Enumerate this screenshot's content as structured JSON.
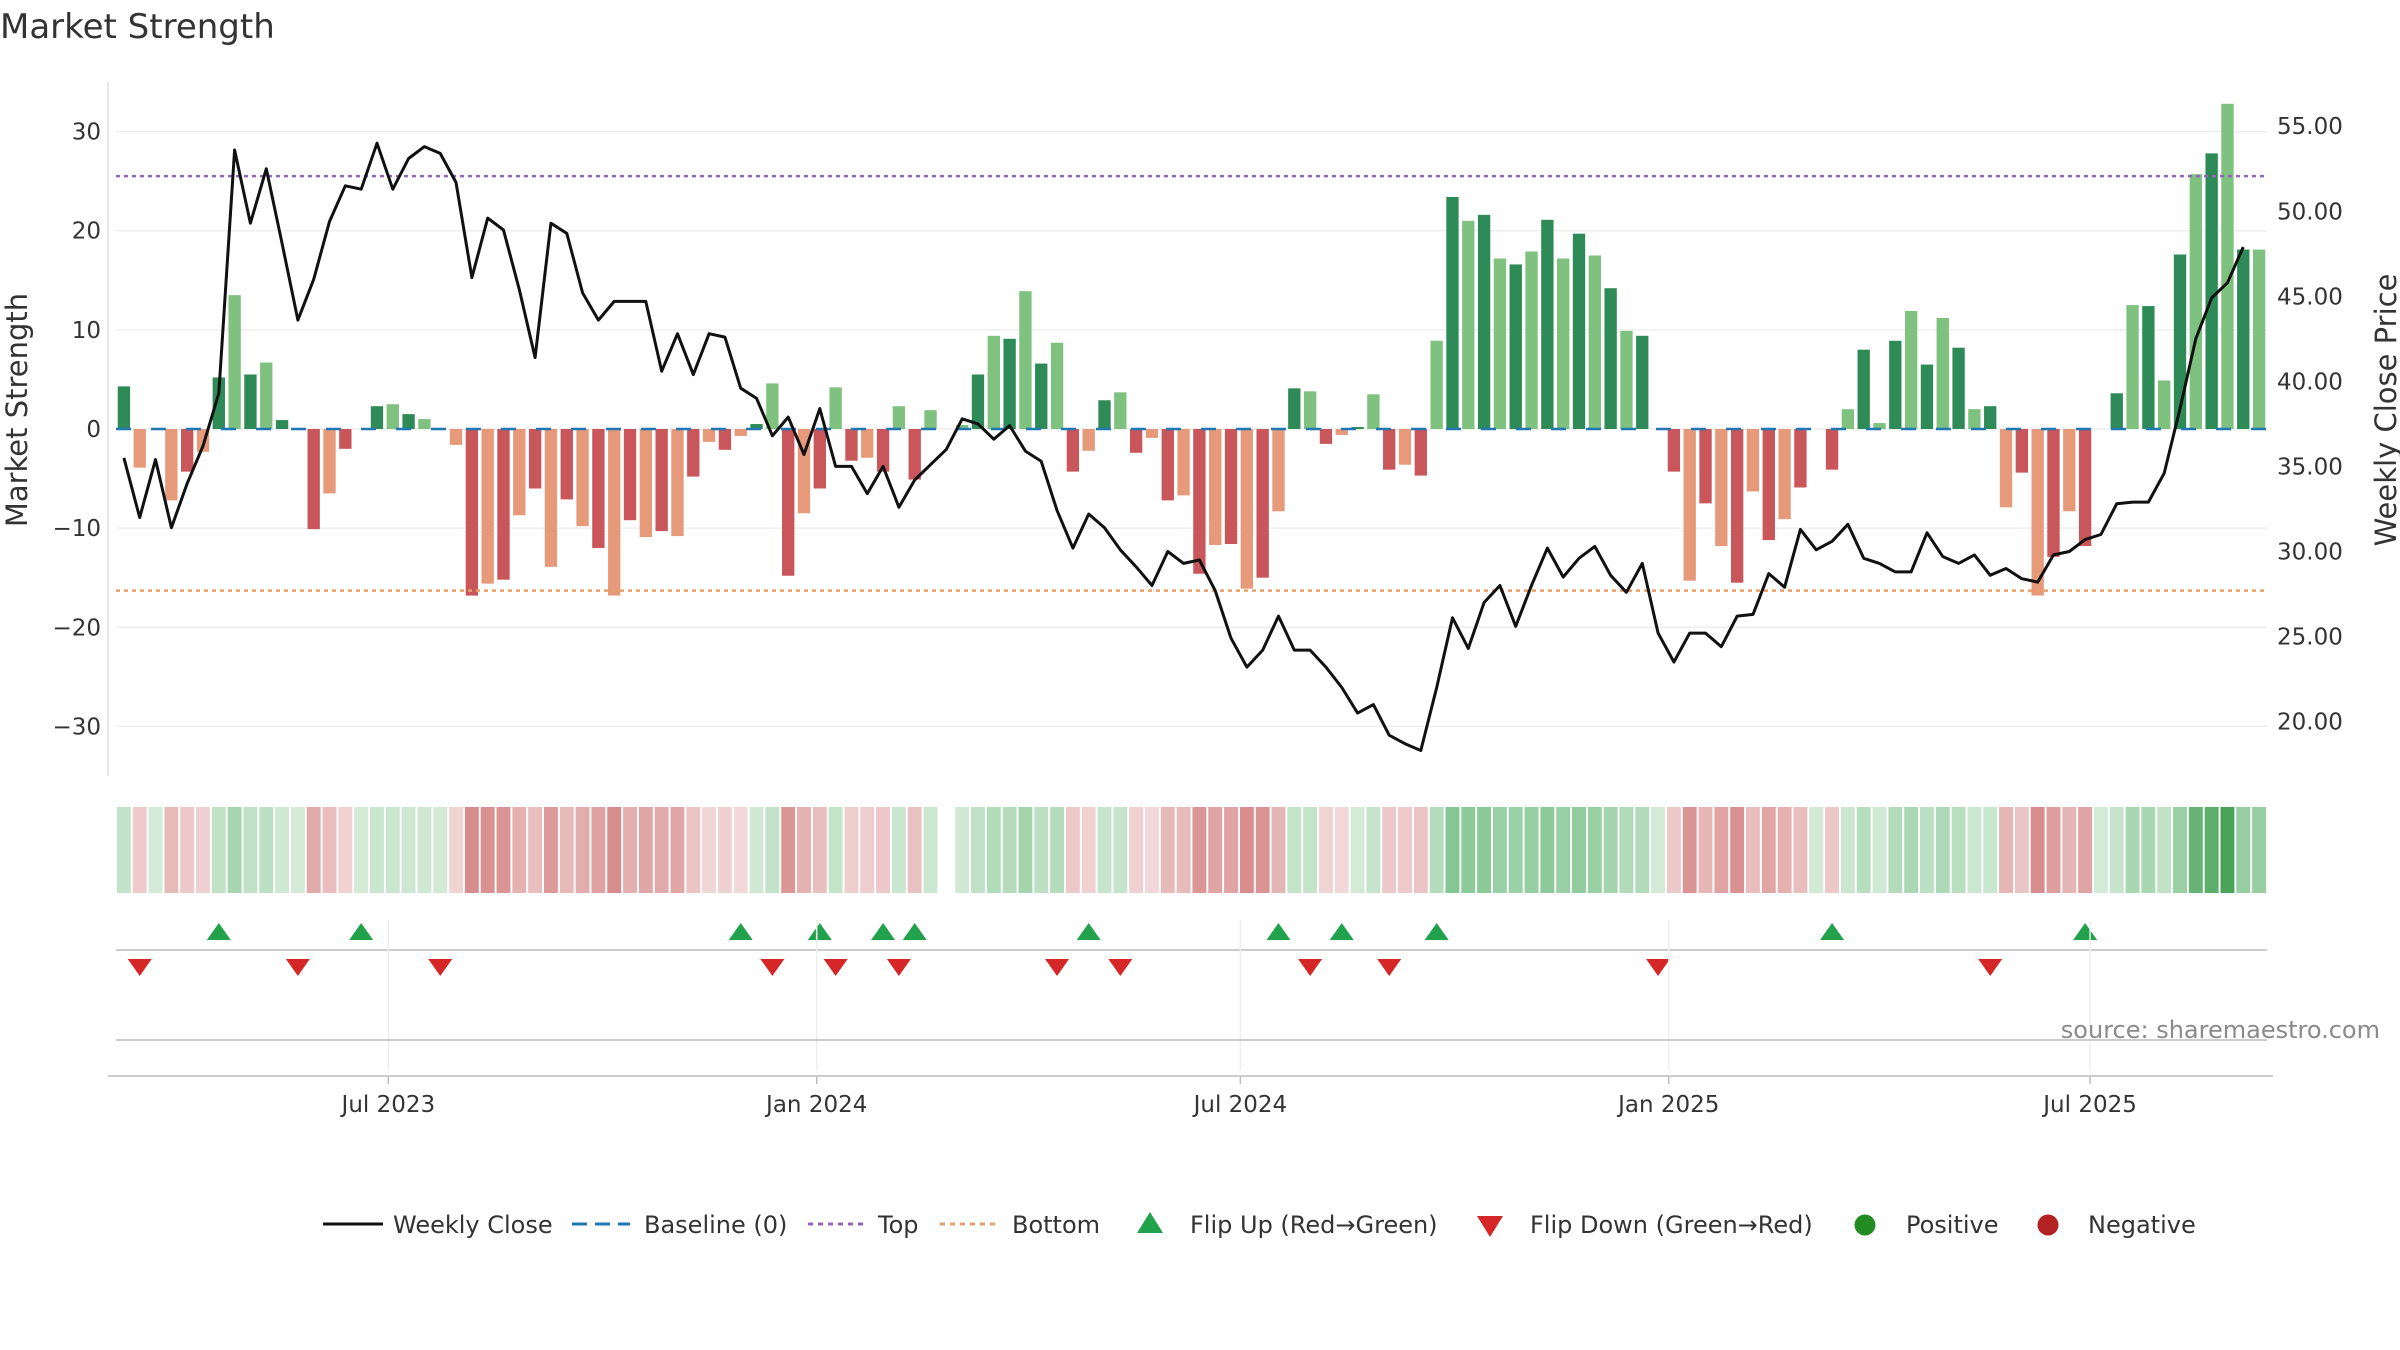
{
  "chart_data": {
    "type": "bar",
    "title": "Market Strength",
    "ylabel_left": "Market Strength",
    "ylabel_right": "Weekly Close Price",
    "source": "source: sharemaestro.com",
    "ylim_left": [
      -35,
      35
    ],
    "yticks_left": [
      30,
      20,
      10,
      0,
      -10,
      -20,
      -30
    ],
    "ylim_right": [
      16.8,
      57.6
    ],
    "yticks_right": [
      "55.00",
      "50.00",
      "45.00",
      "40.00",
      "35.00",
      "30.00",
      "25.00",
      "20.00"
    ],
    "x_start": "2023-03-06",
    "x_end": "2025-09-15",
    "x_tick_labels": [
      {
        "date": "2023-07-01",
        "label": "Jul 2023"
      },
      {
        "date": "2024-01-01",
        "label": "Jan 2024"
      },
      {
        "date": "2024-07-01",
        "label": "Jul 2024"
      },
      {
        "date": "2025-01-01",
        "label": "Jan 2025"
      },
      {
        "date": "2025-07-01",
        "label": "Jul 2025"
      }
    ],
    "top_line": 25.5,
    "bottom_line": -16.3,
    "baseline": 0,
    "strength": [
      4.3,
      -3.9,
      0.0,
      -7.2,
      -4.3,
      -2.3,
      5.2,
      13.5,
      5.5,
      6.7,
      0.9,
      0.0,
      -10.1,
      -6.5,
      -2.0,
      0.0,
      2.3,
      2.5,
      1.5,
      1.0,
      0.0,
      -1.6,
      -16.8,
      -15.6,
      -15.2,
      -8.7,
      -6.0,
      -13.9,
      -7.1,
      -9.8,
      -12.0,
      -16.8,
      -9.2,
      -10.9,
      -10.3,
      -10.8,
      -4.8,
      -1.3,
      -2.1,
      -0.7,
      0.5,
      4.6,
      -14.8,
      -8.5,
      -6.0,
      4.2,
      -3.2,
      -2.9,
      -4.3,
      2.3,
      -5.1,
      1.9,
      0.0,
      0.4,
      5.5,
      9.4,
      9.1,
      13.9,
      6.6,
      8.7,
      -4.3,
      -2.2,
      2.9,
      3.7,
      -2.4,
      -0.9,
      -7.2,
      -6.7,
      -14.6,
      -11.7,
      -11.6,
      -16.1,
      -15.0,
      -8.3,
      4.1,
      3.8,
      -1.5,
      -0.6,
      0.2,
      3.5,
      -4.1,
      -3.6,
      -4.7,
      8.9,
      23.4,
      21.0,
      21.6,
      17.2,
      16.6,
      17.9,
      21.1,
      17.2,
      19.7,
      17.5,
      14.2,
      9.9,
      9.4,
      0.0,
      -4.3,
      -15.3,
      -7.5,
      -11.8,
      -15.5,
      -6.3,
      -11.2,
      -9.1,
      -5.9,
      0.0,
      -4.1,
      2.0,
      8.0,
      0.6,
      8.9,
      11.9,
      6.5,
      11.2,
      8.2,
      2.0,
      2.3,
      -7.9,
      -4.4,
      -16.8,
      -12.9,
      -8.3,
      -11.8,
      0.0,
      3.6,
      12.5,
      12.4,
      4.9,
      17.6,
      25.7,
      27.8,
      32.8,
      18.1,
      18.1
    ],
    "price": [
      35.5,
      32.0,
      35.4,
      31.4,
      34.0,
      36.2,
      39.3,
      53.6,
      49.3,
      52.5,
      48.1,
      43.6,
      46.0,
      49.4,
      51.5,
      51.3,
      54.0,
      51.3,
      53.1,
      53.8,
      53.4,
      51.7,
      46.1,
      49.6,
      48.9,
      45.4,
      41.4,
      49.3,
      48.7,
      45.2,
      43.6,
      44.7,
      44.7,
      44.7,
      40.6,
      42.8,
      40.4,
      42.8,
      42.6,
      39.6,
      39.0,
      36.8,
      37.9,
      35.7,
      38.4,
      35.0,
      35.0,
      33.4,
      35.0,
      32.6,
      34.2,
      35.1,
      36.0,
      37.8,
      37.5,
      36.6,
      37.4,
      35.9,
      35.3,
      32.4,
      30.2,
      32.2,
      31.4,
      30.1,
      29.1,
      28.0,
      30.0,
      29.3,
      29.5,
      27.7,
      24.9,
      23.2,
      24.2,
      26.2,
      24.2,
      24.2,
      23.2,
      22.0,
      20.5,
      21.0,
      19.2,
      18.7,
      18.3,
      22.0,
      26.1,
      24.3,
      27.0,
      28.0,
      25.6,
      28.0,
      30.2,
      28.5,
      29.6,
      30.3,
      28.6,
      27.6,
      29.3,
      25.2,
      23.5,
      25.2,
      25.2,
      24.4,
      26.2,
      26.3,
      28.7,
      27.9,
      31.3,
      30.1,
      30.6,
      31.6,
      29.6,
      29.3,
      28.8,
      28.8,
      31.1,
      29.7,
      29.3,
      29.8,
      28.6,
      29.0,
      28.4,
      28.2,
      29.8,
      30.0,
      30.7,
      31.0,
      32.8,
      32.9,
      32.9,
      34.6,
      38.4,
      42.5,
      44.9,
      45.8,
      47.9
    ],
    "flip_up_indices": [
      6,
      15,
      39,
      44,
      48,
      50,
      61,
      73,
      77,
      83,
      108,
      124
    ],
    "flip_down_indices": [
      1,
      11,
      20,
      41,
      45,
      49,
      59,
      63,
      75,
      80,
      97,
      118
    ],
    "heat_missing_index": 52,
    "colors": {
      "positive_dark": "#2e8b57",
      "positive_light": "#7fc17f",
      "negative_dark": "#c8565a",
      "negative_light": "#e69a7a",
      "price_line": "#111111",
      "baseline": "#1f77b4",
      "top": "#9467bd",
      "bottom": "#e8a06a",
      "flip_up": "#23a24d",
      "flip_down": "#d62728",
      "legend_positive": "#228b22",
      "legend_negative": "#b22222"
    }
  },
  "legend": {
    "weekly_close": "Weekly Close",
    "baseline": "Baseline (0)",
    "top": "Top",
    "bottom": "Bottom",
    "flip_up": "Flip Up (Red→Green)",
    "flip_down": "Flip Down (Green→Red)",
    "positive": "Positive",
    "negative": "Negative"
  }
}
